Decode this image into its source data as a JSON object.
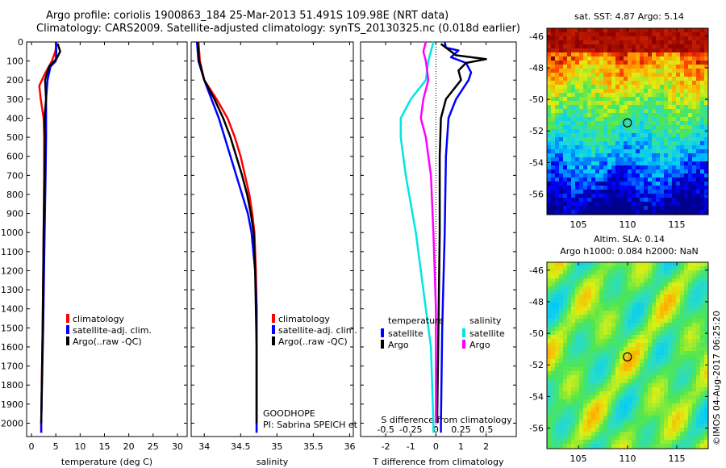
{
  "header": {
    "title_line1": "Argo profile: coriolis 1900863_184 25-Mar-2013 51.491S 109.98E (NRT data)",
    "title_line2": "Climatology: CARS2009. Satellite-adjusted climatology: synTS_20130325.nc (0.018d earlier)"
  },
  "footer": {
    "credit": "©IMOS 04-Aug-2017 06:25:20"
  },
  "colors": {
    "climatology": "#ff0000",
    "satellite": "#0000ff",
    "argo": "#000000",
    "sat_salinity": "#00e5e5",
    "argo_salinity": "#ff00ff"
  },
  "chart_data": [
    {
      "id": "temperature",
      "type": "line",
      "xlabel": "temperature (deg C)",
      "ylabel": "",
      "xlim": [
        -1,
        32
      ],
      "ylim": [
        2070,
        0
      ],
      "xticks": [
        0,
        5,
        10,
        15,
        20,
        25,
        30
      ],
      "yticks": [
        0,
        100,
        200,
        300,
        400,
        500,
        600,
        700,
        800,
        900,
        1000,
        1100,
        1200,
        1300,
        1400,
        1500,
        1600,
        1700,
        1800,
        1900,
        2000
      ],
      "legend": [
        "climatology",
        "satellite-adj. clim.",
        "Argo(..raw -QC)"
      ],
      "series": [
        {
          "name": "climatology",
          "color": "#ff0000",
          "points": [
            [
              5.2,
              0
            ],
            [
              4.9,
              50
            ],
            [
              4.2,
              100
            ],
            [
              2.7,
              170
            ],
            [
              1.6,
              230
            ],
            [
              1.9,
              300
            ],
            [
              2.5,
              400
            ],
            [
              2.6,
              500
            ],
            [
              2.6,
              700
            ],
            [
              2.5,
              1000
            ],
            [
              2.3,
              1500
            ],
            [
              2.0,
              2000
            ],
            [
              2.0,
              2050
            ]
          ]
        },
        {
          "name": "satellite-adj. clim.",
          "color": "#0000ff",
          "points": [
            [
              5.0,
              0
            ],
            [
              5.1,
              50
            ],
            [
              5.0,
              100
            ],
            [
              3.9,
              130
            ],
            [
              3.3,
              200
            ],
            [
              3.0,
              300
            ],
            [
              3.0,
              500
            ],
            [
              2.9,
              700
            ],
            [
              2.7,
              1000
            ],
            [
              2.4,
              1500
            ],
            [
              2.0,
              2000
            ],
            [
              2.0,
              2050
            ]
          ]
        },
        {
          "name": "Argo(..raw -QC)",
          "color": "#000000",
          "points": [
            [
              5.4,
              10
            ],
            [
              5.9,
              50
            ],
            [
              5.1,
              90
            ],
            [
              3.6,
              130
            ],
            [
              2.8,
              200
            ],
            [
              3.0,
              300
            ],
            [
              2.7,
              400
            ],
            [
              2.8,
              500
            ],
            [
              2.7,
              700
            ],
            [
              2.5,
              1000
            ],
            [
              2.3,
              1500
            ],
            [
              2.0,
              2000
            ]
          ]
        }
      ]
    },
    {
      "id": "salinity",
      "type": "line",
      "xlabel": "salinity",
      "ylabel": "",
      "xlim": [
        33.82,
        36.05
      ],
      "ylim": [
        2070,
        0
      ],
      "xticks": [
        34,
        34.5,
        35,
        35.5,
        36
      ],
      "legend": [
        "climatology",
        "satellite-adj. clim.",
        "Argo(..raw -QC)"
      ],
      "annotations": [
        "GOODHOPE",
        "PI: Sabrina SPEICH et Michel ARHAN"
      ],
      "series": [
        {
          "name": "climatology",
          "color": "#ff0000",
          "points": [
            [
              33.92,
              0
            ],
            [
              33.94,
              100
            ],
            [
              34.0,
              200
            ],
            [
              34.17,
              300
            ],
            [
              34.32,
              400
            ],
            [
              34.42,
              500
            ],
            [
              34.5,
              600
            ],
            [
              34.56,
              700
            ],
            [
              34.62,
              800
            ],
            [
              34.66,
              900
            ],
            [
              34.69,
              1000
            ],
            [
              34.71,
              1200
            ],
            [
              34.72,
              1400
            ],
            [
              34.72,
              2000
            ],
            [
              34.72,
              2050
            ]
          ]
        },
        {
          "name": "satellite-adj. clim.",
          "color": "#0000ff",
          "points": [
            [
              33.9,
              0
            ],
            [
              33.92,
              100
            ],
            [
              34.0,
              200
            ],
            [
              34.1,
              300
            ],
            [
              34.2,
              400
            ],
            [
              34.28,
              500
            ],
            [
              34.36,
              600
            ],
            [
              34.44,
              700
            ],
            [
              34.52,
              800
            ],
            [
              34.6,
              900
            ],
            [
              34.65,
              1000
            ],
            [
              34.7,
              1200
            ],
            [
              34.72,
              1400
            ],
            [
              34.72,
              2000
            ],
            [
              34.72,
              2050
            ]
          ]
        },
        {
          "name": "Argo(..raw -QC)",
          "color": "#000000",
          "points": [
            [
              33.91,
              0
            ],
            [
              33.93,
              100
            ],
            [
              34.0,
              200
            ],
            [
              34.14,
              300
            ],
            [
              34.26,
              400
            ],
            [
              34.36,
              500
            ],
            [
              34.44,
              600
            ],
            [
              34.52,
              700
            ],
            [
              34.59,
              800
            ],
            [
              34.64,
              900
            ],
            [
              34.68,
              1000
            ],
            [
              34.7,
              1200
            ],
            [
              34.71,
              1400
            ],
            [
              34.72,
              1600
            ],
            [
              34.72,
              2000
            ]
          ]
        }
      ]
    },
    {
      "id": "difference",
      "type": "line",
      "xlabel": "T difference from climatology",
      "top_xlabel": "S difference from climatology",
      "ylabel": "",
      "xlim": [
        -3.0,
        3.2
      ],
      "ylim": [
        2070,
        0
      ],
      "xticks": [
        -2,
        -1,
        0,
        1,
        2
      ],
      "top_xtick_labels": [
        "-0.5",
        "-0.25",
        "0",
        "0.25",
        "0.5"
      ],
      "legend_temperature": [
        "satellite",
        "Argo"
      ],
      "legend_salinity": [
        "satellite",
        "Argo"
      ],
      "legend_headers": [
        "temperature",
        "salinity"
      ],
      "series": [
        {
          "name": "temperature satellite",
          "color": "#0000ff",
          "points": [
            [
              0.35,
              0
            ],
            [
              0.4,
              30
            ],
            [
              0.9,
              45
            ],
            [
              0.6,
              80
            ],
            [
              1.2,
              110
            ],
            [
              1.4,
              160
            ],
            [
              1.3,
              200
            ],
            [
              0.8,
              300
            ],
            [
              0.5,
              400
            ],
            [
              0.4,
              600
            ],
            [
              0.35,
              1000
            ],
            [
              0.25,
              1500
            ],
            [
              0.2,
              2000
            ],
            [
              0.2,
              2050
            ]
          ]
        },
        {
          "name": "temperature Argo",
          "color": "#000000",
          "points": [
            [
              0.2,
              10
            ],
            [
              0.8,
              70
            ],
            [
              2.0,
              90
            ],
            [
              1.2,
              110
            ],
            [
              0.9,
              150
            ],
            [
              1.0,
              200
            ],
            [
              0.4,
              300
            ],
            [
              0.2,
              400
            ],
            [
              0.15,
              600
            ],
            [
              0.15,
              1000
            ],
            [
              0.1,
              1500
            ],
            [
              0.05,
              2000
            ]
          ]
        },
        {
          "name": "salinity satellite",
          "color": "#00e5e5",
          "points": [
            [
              -0.1,
              0
            ],
            [
              -0.2,
              50
            ],
            [
              -0.3,
              100
            ],
            [
              -0.4,
              200
            ],
            [
              -1.0,
              300
            ],
            [
              -1.4,
              400
            ],
            [
              -1.4,
              500
            ],
            [
              -1.2,
              700
            ],
            [
              -0.8,
              1000
            ],
            [
              -0.5,
              1300
            ],
            [
              -0.2,
              1600
            ],
            [
              -0.1,
              2000
            ],
            [
              -0.1,
              2050
            ]
          ]
        },
        {
          "name": "salinity Argo",
          "color": "#ff00ff",
          "points": [
            [
              -0.4,
              0
            ],
            [
              -0.5,
              50
            ],
            [
              -0.4,
              100
            ],
            [
              -0.3,
              200
            ],
            [
              -0.5,
              300
            ],
            [
              -0.6,
              400
            ],
            [
              -0.4,
              500
            ],
            [
              -0.2,
              700
            ],
            [
              -0.1,
              1000
            ],
            [
              0.0,
              1400
            ],
            [
              0.0,
              2000
            ]
          ]
        }
      ]
    },
    {
      "id": "sst-map",
      "type": "heatmap",
      "title": "sat. SST: 4.87 Argo: 5.14",
      "xticks": [
        105,
        110,
        115
      ],
      "yticks": [
        -46,
        -48,
        -50,
        -52,
        -54,
        -56
      ],
      "xlim": [
        101.8,
        118.2
      ],
      "ylim": [
        -57.3,
        -45.5
      ],
      "float_position": {
        "lon": 109.98,
        "lat": -51.491
      }
    },
    {
      "id": "sla-map",
      "type": "heatmap",
      "title": "Altim. SLA: 0.14",
      "subtitle": "Argo h1000: 0.084 h2000: NaN",
      "xticks": [
        105,
        110,
        115
      ],
      "yticks": [
        -46,
        -48,
        -50,
        -52,
        -54,
        -56
      ],
      "xlim": [
        101.8,
        118.2
      ],
      "ylim": [
        -57.3,
        -45.5
      ],
      "float_position": {
        "lon": 109.98,
        "lat": -51.491
      }
    }
  ]
}
